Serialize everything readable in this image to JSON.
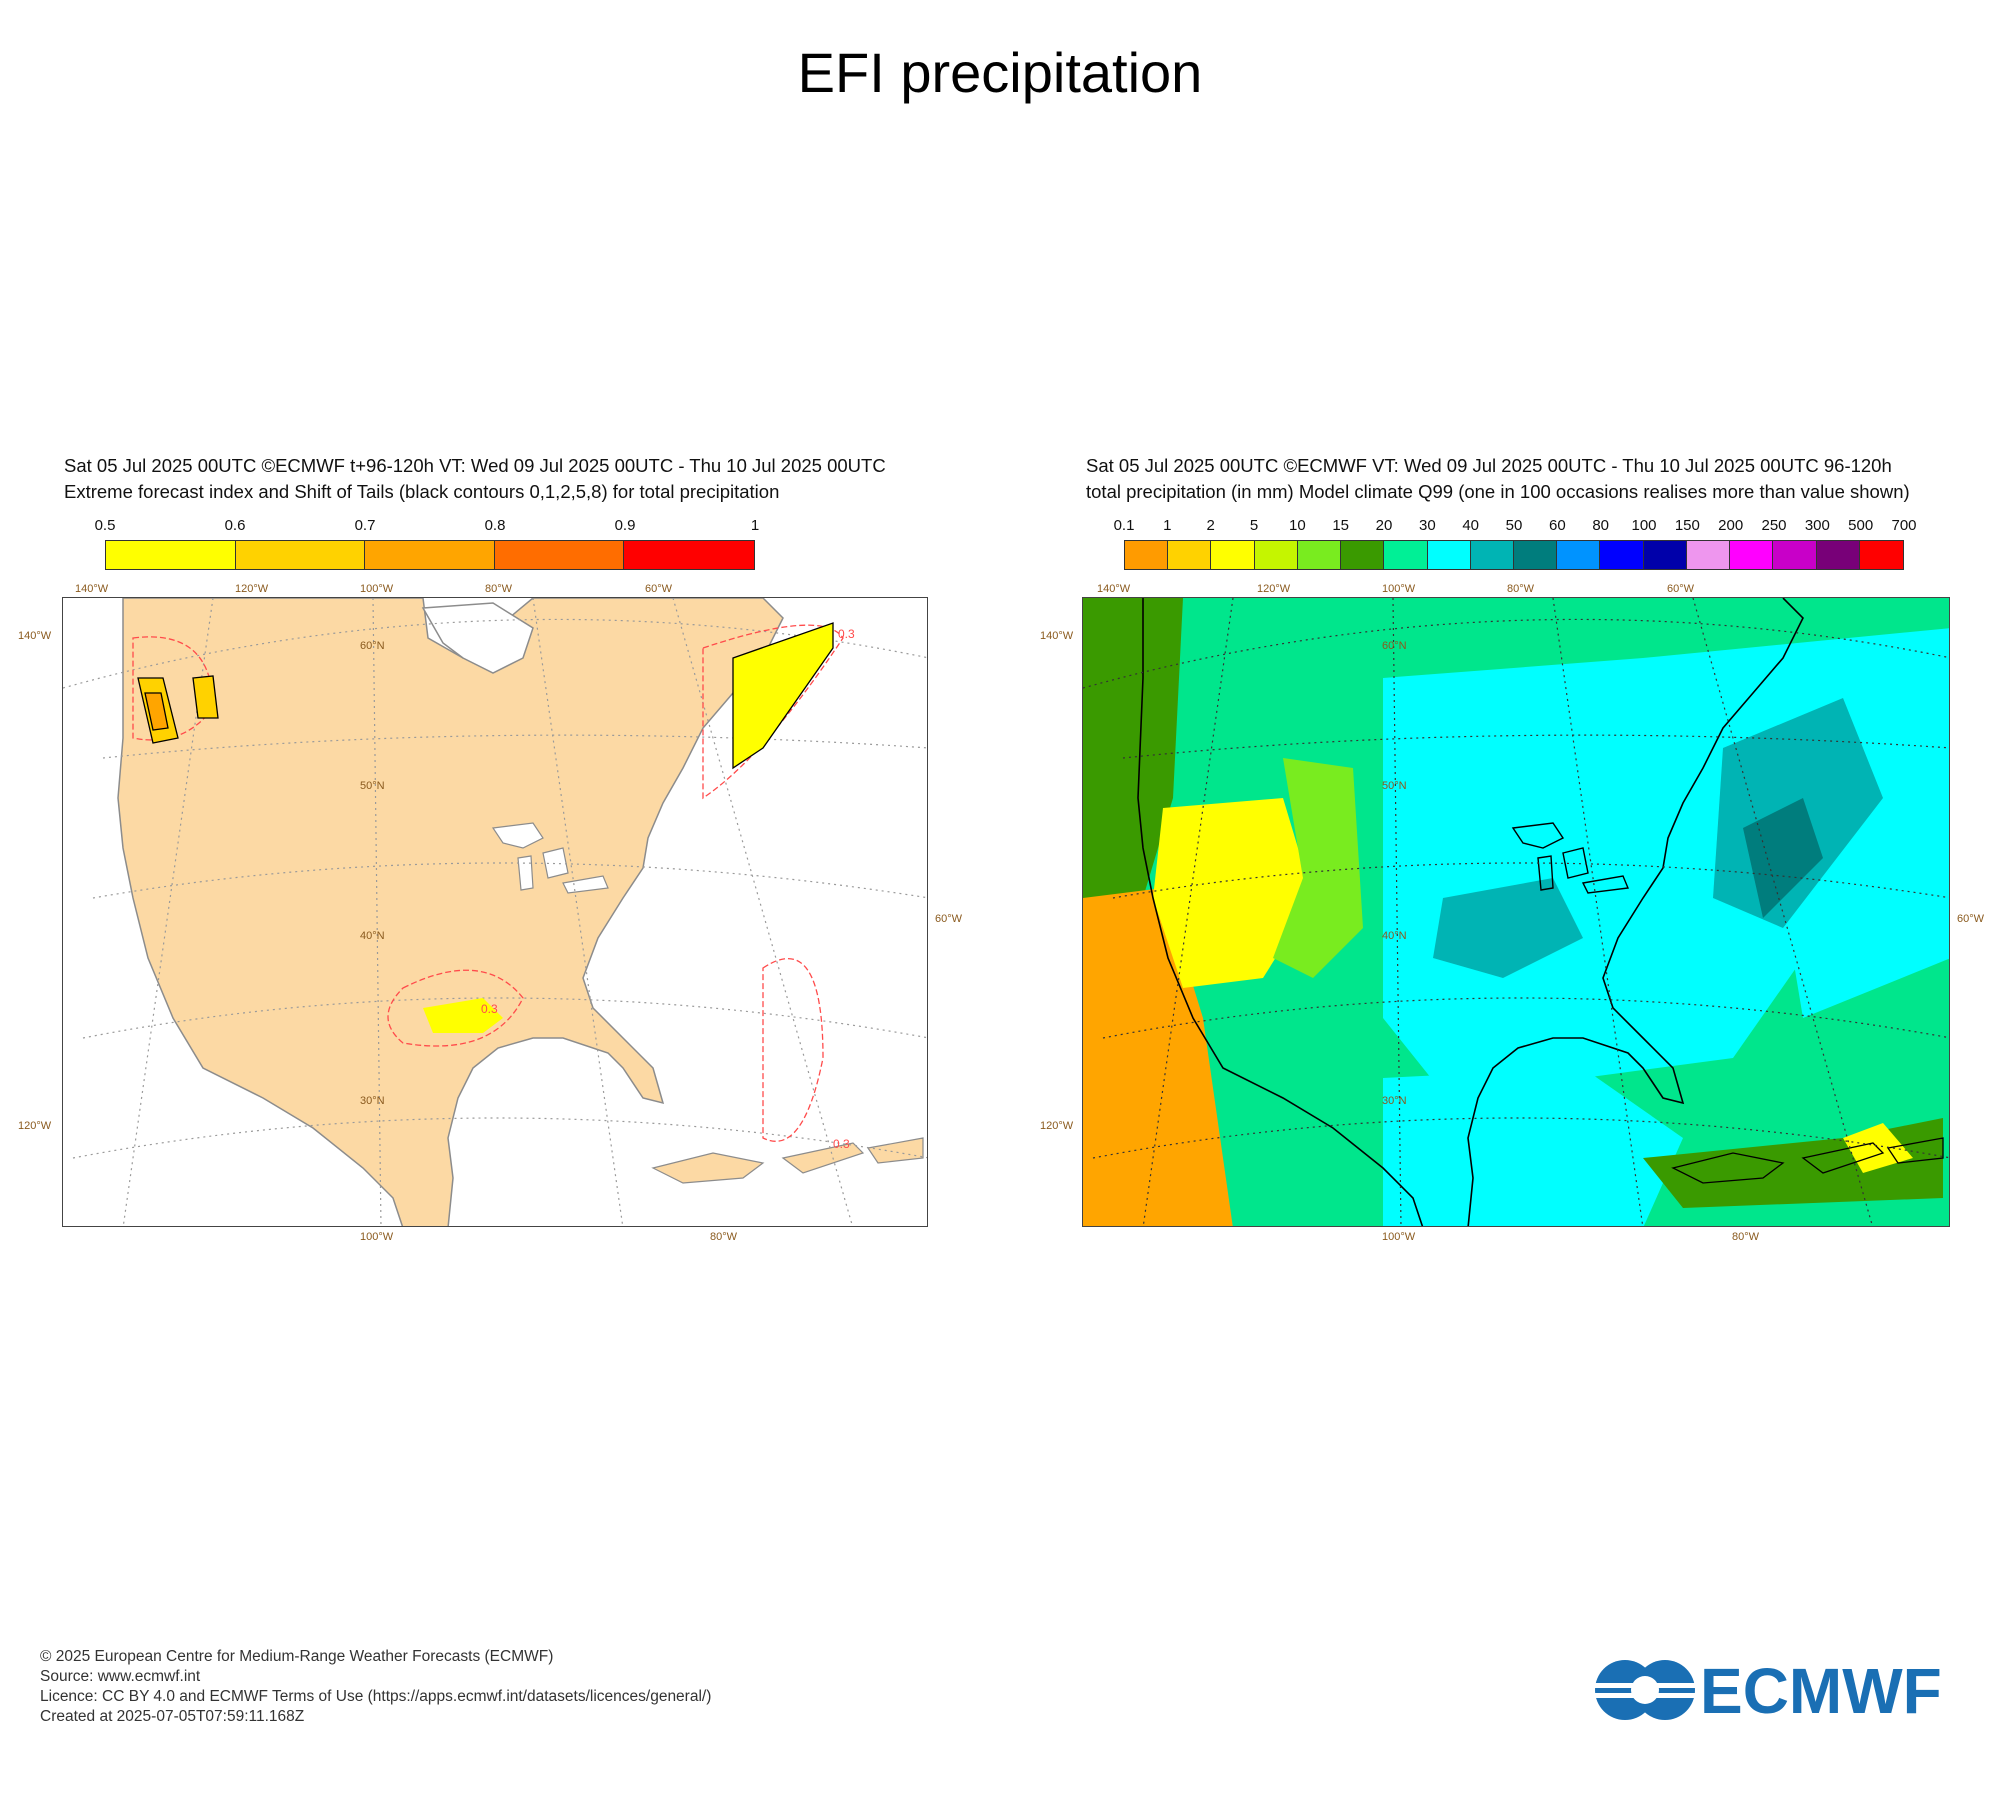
{
  "title": "EFI precipitation",
  "left_panel": {
    "caption_line1": "Sat 05 Jul 2025 00UTC ©ECMWF t+96-120h  VT: Wed 09 Jul 2025 00UTC - Thu 10 Jul 2025 00UTC",
    "caption_line2": "Extreme forecast index and Shift of Tails (black contours 0,1,2,5,8) for total precipitation",
    "colorbar": {
      "ticks": [
        "0.5",
        "0.6",
        "0.7",
        "0.8",
        "0.9",
        "1"
      ],
      "colors": [
        "#ffff00",
        "#ffd200",
        "#ffa500",
        "#ff6d00",
        "#ff0000"
      ]
    },
    "contour_label": "0.3",
    "axis_labels": {
      "top": [
        "140°W",
        "120°W",
        "100°W",
        "80°W",
        "60°W"
      ],
      "left": [
        "140°W",
        "120°W"
      ],
      "right": [
        "60°W"
      ],
      "bottom": [
        "100°W",
        "80°W"
      ],
      "lat": [
        "60°N",
        "50°N",
        "40°N",
        "30°N"
      ]
    },
    "colors": {
      "land": "#fcd9a4",
      "ocean": "#ffffff",
      "coast": "#8c8c8c",
      "contour": "#ff4b4b"
    }
  },
  "right_panel": {
    "caption_line1": "Sat 05 Jul 2025 00UTC ©ECMWF VT: Wed 09 Jul 2025 00UTC - Thu 10 Jul 2025 00UTC   96-120h",
    "caption_line2": "total precipitation (in mm)  Model climate Q99 (one in 100 occasions realises more than value shown)",
    "colorbar": {
      "ticks": [
        "0.1",
        "1",
        "2",
        "5",
        "10",
        "15",
        "20",
        "30",
        "40",
        "50",
        "60",
        "80",
        "100",
        "150",
        "200",
        "250",
        "300",
        "500",
        "700"
      ],
      "colors": [
        "#ff9b00",
        "#ffd200",
        "#ffff00",
        "#c5f500",
        "#79ec1f",
        "#3a9a00",
        "#00f096",
        "#00ffff",
        "#00b4b4",
        "#007d7d",
        "#0093ff",
        "#0000ff",
        "#0000aa",
        "#ee96ee",
        "#ff00ff",
        "#c800c8",
        "#780078",
        "#ff0000"
      ]
    },
    "axis_labels": {
      "top": [
        "140°W",
        "120°W",
        "100°W",
        "80°W",
        "60°W"
      ],
      "left": [
        "140°W",
        "120°W"
      ],
      "right": [
        "60°W"
      ],
      "bottom": [
        "100°W",
        "80°W"
      ],
      "lat": [
        "60°N",
        "50°N",
        "40°N",
        "30°N"
      ]
    }
  },
  "footer": {
    "line1": "© 2025 European Centre for Medium-Range Weather Forecasts (ECMWF)",
    "line2": "Source: www.ecmwf.int",
    "line3": "Licence: CC BY 4.0 and ECMWF Terms of Use (https://apps.ecmwf.int/datasets/licences/general/)",
    "line4": "Created at 2025-07-05T07:59:11.168Z"
  },
  "logo": {
    "text": "ECMWF",
    "color": "#1a6fb4"
  }
}
